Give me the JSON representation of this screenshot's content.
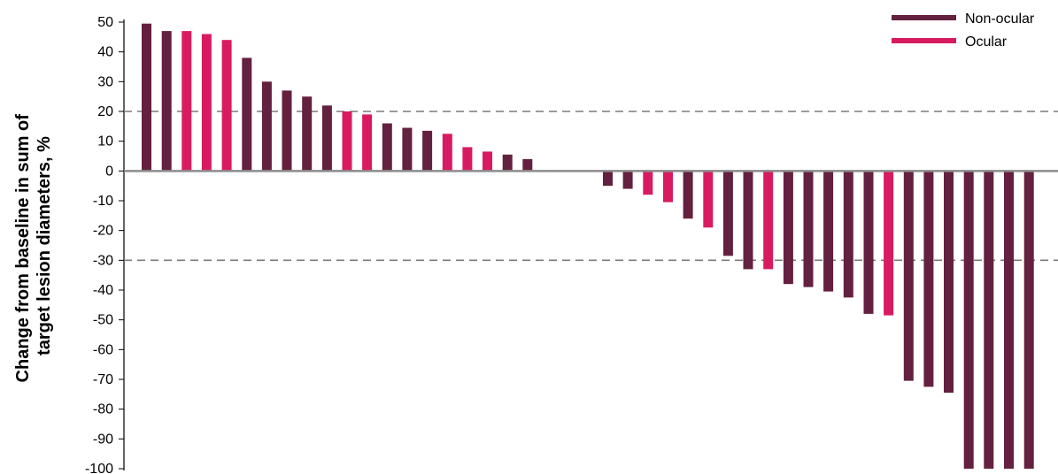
{
  "chart_data": {
    "type": "bar",
    "ylabel_lines": [
      "Change from baseline in sum of",
      "target lesion diameters, %"
    ],
    "ylim": [
      -100,
      50
    ],
    "yticks": [
      50,
      40,
      30,
      20,
      10,
      0,
      -10,
      -20,
      -30,
      -40,
      -50,
      -60,
      -70,
      -80,
      -90,
      -100
    ],
    "reference_lines": [
      20,
      -30
    ],
    "legend": [
      {
        "name": "Non-ocular",
        "color": "#64203f"
      },
      {
        "name": "Ocular",
        "color": "#d81b60"
      }
    ],
    "legend_position": "top-right",
    "grid": false,
    "bars": [
      {
        "group": "Non-ocular",
        "value": 49.5
      },
      {
        "group": "Non-ocular",
        "value": 47
      },
      {
        "group": "Ocular",
        "value": 47
      },
      {
        "group": "Ocular",
        "value": 46
      },
      {
        "group": "Ocular",
        "value": 44
      },
      {
        "group": "Non-ocular",
        "value": 38
      },
      {
        "group": "Non-ocular",
        "value": 30
      },
      {
        "group": "Non-ocular",
        "value": 27
      },
      {
        "group": "Non-ocular",
        "value": 25
      },
      {
        "group": "Non-ocular",
        "value": 22
      },
      {
        "group": "Ocular",
        "value": 20
      },
      {
        "group": "Ocular",
        "value": 19
      },
      {
        "group": "Non-ocular",
        "value": 16
      },
      {
        "group": "Non-ocular",
        "value": 14.5
      },
      {
        "group": "Non-ocular",
        "value": 13.5
      },
      {
        "group": "Ocular",
        "value": 12.5
      },
      {
        "group": "Ocular",
        "value": 8
      },
      {
        "group": "Ocular",
        "value": 6.5
      },
      {
        "group": "Non-ocular",
        "value": 5.5
      },
      {
        "group": "Non-ocular",
        "value": 4
      },
      {
        "group": "Non-ocular",
        "value": -5
      },
      {
        "group": "Non-ocular",
        "value": -6
      },
      {
        "group": "Ocular",
        "value": -8
      },
      {
        "group": "Ocular",
        "value": -10.5
      },
      {
        "group": "Non-ocular",
        "value": -16
      },
      {
        "group": "Ocular",
        "value": -19
      },
      {
        "group": "Non-ocular",
        "value": -28.5
      },
      {
        "group": "Non-ocular",
        "value": -33
      },
      {
        "group": "Ocular",
        "value": -33
      },
      {
        "group": "Non-ocular",
        "value": -38
      },
      {
        "group": "Non-ocular",
        "value": -39
      },
      {
        "group": "Non-ocular",
        "value": -40.5
      },
      {
        "group": "Non-ocular",
        "value": -42.5
      },
      {
        "group": "Non-ocular",
        "value": -48
      },
      {
        "group": "Ocular",
        "value": -48.5
      },
      {
        "group": "Non-ocular",
        "value": -70.5
      },
      {
        "group": "Non-ocular",
        "value": -72.5
      },
      {
        "group": "Non-ocular",
        "value": -74.5
      },
      {
        "group": "Non-ocular",
        "value": -100
      },
      {
        "group": "Non-ocular",
        "value": -100
      },
      {
        "group": "Non-ocular",
        "value": -100
      },
      {
        "group": "Non-ocular",
        "value": -100
      }
    ]
  }
}
